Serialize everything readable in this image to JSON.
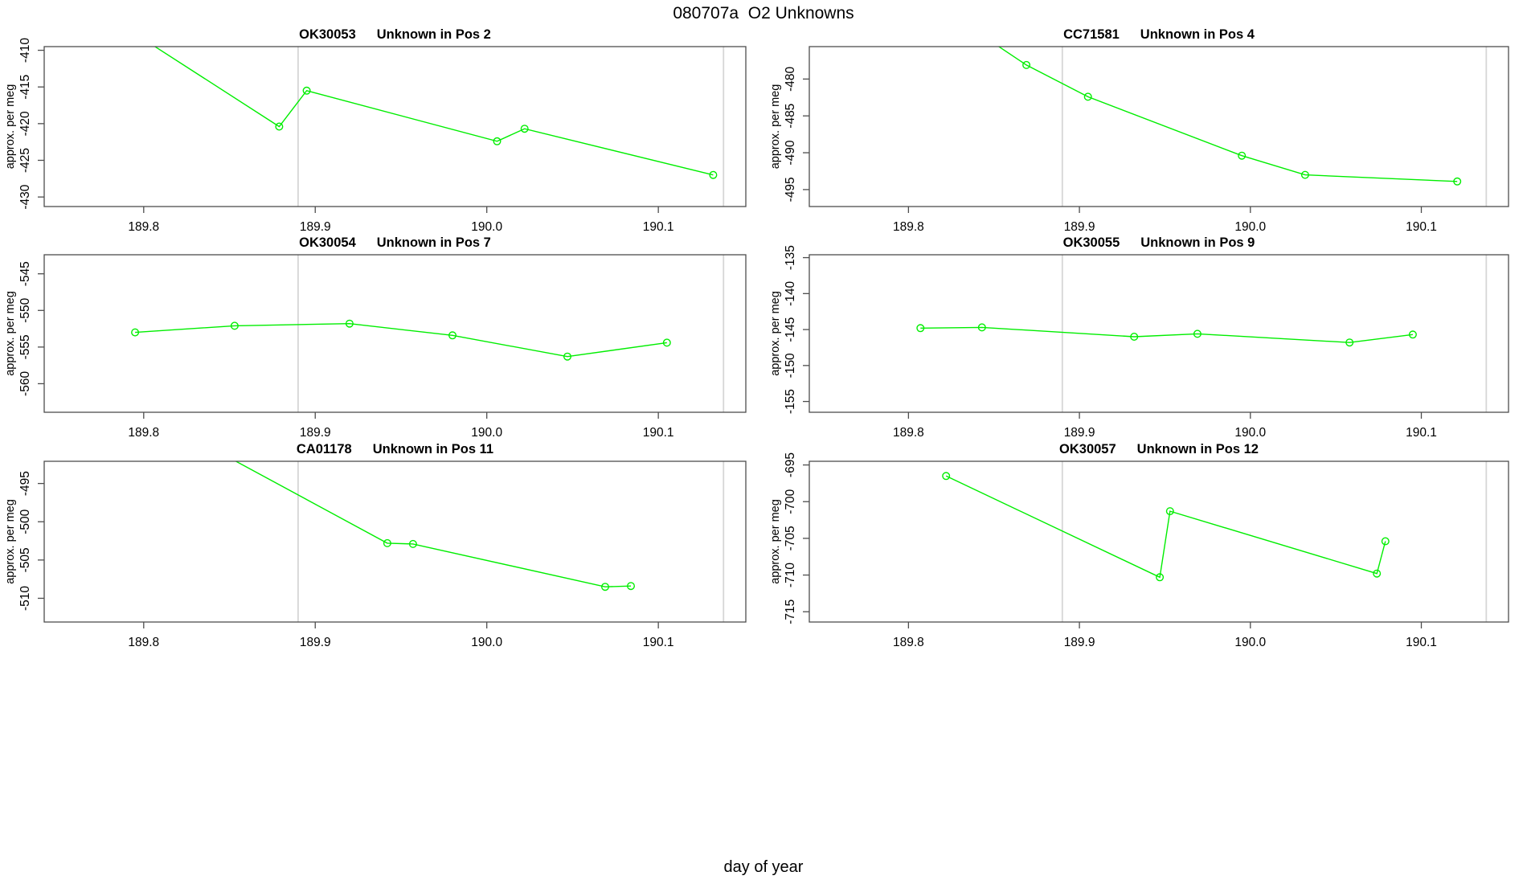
{
  "header": {
    "title": "080707a  O2 Unknowns"
  },
  "footer": {
    "xlabel": "day of year"
  },
  "colors": {
    "series_line": "#00ee00",
    "marker": "#00ee00",
    "ref_line": "#d6d6d6",
    "frame": "#4d4d4d",
    "text": "#000000",
    "background": "#ffffff"
  },
  "chart_data": [
    {
      "type": "line",
      "series": "OK30053",
      "position_label": "Unknown in Pos 2",
      "title": "OK30053   Unknown in Pos 2",
      "ylabel": "approx. per meg",
      "xlim": [
        189.742,
        190.151
      ],
      "ylim": [
        -431.3,
        -409.5
      ],
      "xticks": [
        189.8,
        189.9,
        190.0,
        190.1
      ],
      "xtick_labels": [
        "189.8",
        "189.9",
        "190.0",
        "190.1"
      ],
      "yticks": [
        -430,
        -425,
        -420,
        -415,
        -410
      ],
      "ref_lines_x": [
        189.89,
        190.138
      ],
      "x": [
        189.79,
        189.879,
        189.895,
        190.006,
        190.022,
        190.132
      ],
      "y": [
        -407.0,
        -420.4,
        -415.5,
        -422.4,
        -420.7,
        -427.0
      ]
    },
    {
      "type": "line",
      "series": "CC71581",
      "position_label": "Unknown in Pos 4",
      "title": "CC71581   Unknown in Pos 4",
      "ylabel": "approx. per meg",
      "xlim": [
        189.742,
        190.151
      ],
      "ylim": [
        -497.3,
        -475.6
      ],
      "xticks": [
        189.8,
        189.9,
        190.0,
        190.1
      ],
      "xtick_labels": [
        "189.8",
        "189.9",
        "190.0",
        "190.1"
      ],
      "yticks": [
        -495,
        -490,
        -485,
        -480
      ],
      "ref_lines_x": [
        189.89,
        190.138
      ],
      "x": [
        189.82,
        189.869,
        189.905,
        189.995,
        190.032,
        190.121
      ],
      "y": [
        -470.5,
        -478.1,
        -482.4,
        -490.4,
        -493.0,
        -493.9
      ]
    },
    {
      "type": "line",
      "series": "OK30054",
      "position_label": "Unknown in Pos 7",
      "title": "OK30054   Unknown in Pos 7",
      "ylabel": "approx. per meg",
      "xlim": [
        189.742,
        190.151
      ],
      "ylim": [
        -563.9,
        -542.4
      ],
      "xticks": [
        189.8,
        189.9,
        190.0,
        190.1
      ],
      "xtick_labels": [
        "189.8",
        "189.9",
        "190.0",
        "190.1"
      ],
      "yticks": [
        -560,
        -555,
        -550,
        -545
      ],
      "ref_lines_x": [
        189.89,
        190.138
      ],
      "x": [
        189.795,
        189.853,
        189.92,
        189.98,
        190.047,
        190.105
      ],
      "y": [
        -553.0,
        -552.1,
        -551.8,
        -553.4,
        -556.3,
        -554.4
      ]
    },
    {
      "type": "line",
      "series": "OK30055",
      "position_label": "Unknown in Pos 9",
      "title": "OK30055   Unknown in Pos 9",
      "ylabel": "approx. per meg",
      "xlim": [
        189.742,
        190.151
      ],
      "ylim": [
        -156.5,
        -134.6
      ],
      "xticks": [
        189.8,
        189.9,
        190.0,
        190.1
      ],
      "xtick_labels": [
        "189.8",
        "189.9",
        "190.0",
        "190.1"
      ],
      "yticks": [
        -155,
        -150,
        -145,
        -140,
        -135
      ],
      "ref_lines_x": [
        189.89,
        190.138
      ],
      "x": [
        189.807,
        189.843,
        189.932,
        189.969,
        190.058,
        190.095
      ],
      "y": [
        -144.8,
        -144.7,
        -146.0,
        -145.6,
        -146.8,
        -145.7
      ]
    },
    {
      "type": "line",
      "series": "CA01178",
      "position_label": "Unknown in Pos 11",
      "title": "CA01178   Unknown in Pos 11",
      "ylabel": "approx. per meg",
      "xlim": [
        189.742,
        190.151
      ],
      "ylim": [
        -513.1,
        -492.1
      ],
      "xticks": [
        189.8,
        189.9,
        190.0,
        190.1
      ],
      "xtick_labels": [
        "189.8",
        "189.9",
        "190.0",
        "190.1"
      ],
      "yticks": [
        -510,
        -505,
        -500,
        -495
      ],
      "ref_lines_x": [
        189.89,
        190.138
      ],
      "x": [
        189.82,
        189.942,
        189.957,
        190.069,
        190.084
      ],
      "y": [
        -488.0,
        -502.8,
        -502.9,
        -508.5,
        -508.4
      ]
    },
    {
      "type": "line",
      "series": "OK30057",
      "position_label": "Unknown in Pos 12",
      "title": "OK30057   Unknown in Pos 12",
      "ylabel": "approx. per meg",
      "xlim": [
        189.742,
        190.151
      ],
      "ylim": [
        -716.4,
        -694.5
      ],
      "xticks": [
        189.8,
        189.9,
        190.0,
        190.1
      ],
      "xtick_labels": [
        "189.8",
        "189.9",
        "190.0",
        "190.1"
      ],
      "yticks": [
        -715,
        -710,
        -705,
        -700,
        -695
      ],
      "ref_lines_x": [
        189.89,
        190.138
      ],
      "x": [
        189.822,
        189.947,
        189.953,
        190.074,
        190.079
      ],
      "y": [
        -696.5,
        -710.3,
        -701.3,
        -709.8,
        -705.4
      ]
    }
  ]
}
